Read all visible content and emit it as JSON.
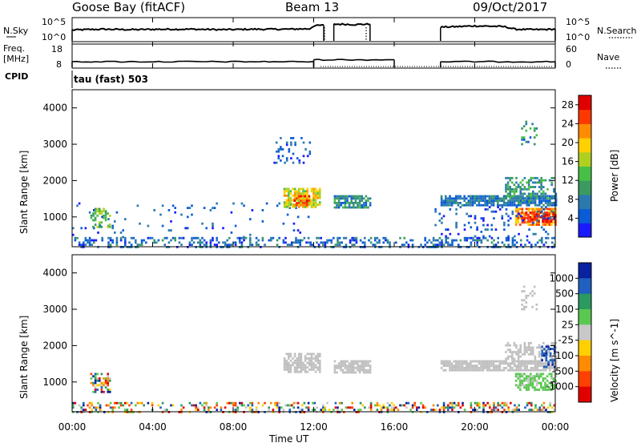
{
  "header": {
    "station": "Goose Bay (fitACF)",
    "beam": "Beam 13",
    "date": "09/Oct/2017"
  },
  "panels": {
    "nsky": {
      "left_label": "N.Sky",
      "right_label": "N.Search",
      "left_ticks": [
        "10^5",
        "10^0"
      ],
      "right_ticks": [
        "10^5",
        "10^0"
      ]
    },
    "freq": {
      "left_label_1": "Freq.",
      "left_label_2": "[MHz]",
      "right_label": "Nave",
      "left_ticks": [
        "18",
        "8"
      ],
      "right_ticks": [
        "60",
        "0"
      ]
    },
    "cpid": {
      "label": "CPID",
      "program": "tau (fast) 503"
    }
  },
  "chart_data": [
    {
      "type": "line",
      "name": "nsky-panel",
      "x_unit": "hours UT",
      "series": [
        {
          "name": "N.Sky",
          "segments": [
            {
              "x": [
                0.0,
                0.6,
                1.5,
                3.0,
                4.5,
                6.0,
                7.5,
                9.0,
                10.5,
                11.8,
                12.0,
                12.5
              ],
              "y": [
                2.4,
                2.5,
                2.6,
                2.5,
                2.6,
                2.6,
                2.5,
                2.6,
                2.6,
                2.7,
                3.4,
                3.6
              ]
            },
            {
              "x": [
                13.0,
                13.5,
                14.0,
                14.5,
                14.8
              ],
              "y": [
                3.8,
                3.8,
                3.7,
                3.8,
                3.8
              ]
            },
            {
              "x": [
                18.3,
                19.0,
                20.0,
                21.0,
                21.5,
                22.0,
                23.0,
                24.0
              ],
              "y": [
                3.1,
                3.2,
                3.4,
                3.3,
                3.2,
                2.6,
                2.5,
                2.6
              ]
            }
          ]
        }
      ],
      "ylim": [
        0,
        5
      ]
    },
    {
      "type": "line",
      "name": "freq-panel",
      "x_unit": "hours UT",
      "series": [
        {
          "name": "Freq.",
          "segments": [
            {
              "x": [
                0.0,
                12.0
              ],
              "y": [
                10.5,
                10.5
              ]
            },
            {
              "x": [
                12.0,
                16.0
              ],
              "y": [
                11.5,
                11.5
              ]
            },
            {
              "x": [
                18.3,
                24.0
              ],
              "y": [
                10.5,
                10.5
              ]
            }
          ]
        }
      ],
      "ylim": [
        8,
        18
      ]
    },
    {
      "type": "heatmap",
      "title": "",
      "xlabel": "Time UT",
      "ylabel": "Slant Range [km]",
      "x_ticks": [
        "00:00",
        "04:00",
        "08:00",
        "12:00",
        "16:00",
        "20:00",
        "00:00"
      ],
      "y_ticks": [
        1000,
        2000,
        3000,
        4000
      ],
      "xlim": [
        0,
        24
      ],
      "ylim": [
        180,
        4500
      ],
      "colorbar": {
        "label": "Power [dB]",
        "ticks": [
          4,
          8,
          12,
          16,
          20,
          24,
          28
        ],
        "range": [
          0,
          30
        ]
      },
      "regions": [
        {
          "x": [
            0.0,
            24.0
          ],
          "y": [
            200,
            450
          ],
          "value": 6,
          "density": 0.35
        },
        {
          "x": [
            0.0,
            12.0
          ],
          "y": [
            450,
            1400
          ],
          "value": 5,
          "density": 0.05
        },
        {
          "x": [
            0.9,
            1.9
          ],
          "y": [
            700,
            1250
          ],
          "value": 14,
          "density": 0.5
        },
        {
          "x": [
            10.5,
            12.3
          ],
          "y": [
            1250,
            1800
          ],
          "value": 18,
          "density": 0.75
        },
        {
          "x": [
            11.0,
            11.8
          ],
          "y": [
            1300,
            1600
          ],
          "value": 26,
          "density": 0.5
        },
        {
          "x": [
            10.0,
            11.8
          ],
          "y": [
            2500,
            3200
          ],
          "value": 5,
          "density": 0.2
        },
        {
          "x": [
            13.0,
            14.8
          ],
          "y": [
            1250,
            1600
          ],
          "value": 9,
          "density": 0.8
        },
        {
          "x": [
            18.3,
            24.0
          ],
          "y": [
            1350,
            1600
          ],
          "value": 7,
          "density": 0.85
        },
        {
          "x": [
            21.5,
            24.0
          ],
          "y": [
            1500,
            2100
          ],
          "value": 10,
          "density": 0.45
        },
        {
          "x": [
            22.0,
            24.0
          ],
          "y": [
            800,
            1250
          ],
          "value": 23,
          "density": 0.8
        },
        {
          "x": [
            22.3,
            24.0
          ],
          "y": [
            850,
            1150
          ],
          "value": 28,
          "density": 0.6
        },
        {
          "x": [
            22.3,
            23.1
          ],
          "y": [
            3000,
            3650
          ],
          "value": 9,
          "density": 0.25
        },
        {
          "x": [
            18.0,
            24.0
          ],
          "y": [
            450,
            1300
          ],
          "value": 5,
          "density": 0.12
        }
      ]
    },
    {
      "type": "heatmap",
      "title": "",
      "xlabel": "Time UT",
      "ylabel": "Slant Range [km]",
      "x_ticks": [
        "00:00",
        "04:00",
        "08:00",
        "12:00",
        "16:00",
        "20:00",
        "00:00"
      ],
      "y_ticks": [
        1000,
        2000,
        3000,
        4000
      ],
      "xlim": [
        0,
        24
      ],
      "ylim": [
        180,
        4500
      ],
      "colorbar": {
        "label": "Velocity [m s^-1]",
        "ticks": [
          "1000",
          "500",
          "100",
          "25",
          "-25",
          "-100",
          "-500",
          "-1000"
        ]
      },
      "regions": [
        {
          "x": [
            0.0,
            24.0
          ],
          "y": [
            200,
            450
          ],
          "class": "mixed",
          "density": 0.35
        },
        {
          "x": [
            0.9,
            1.9
          ],
          "y": [
            700,
            1250
          ],
          "class": "mixed",
          "density": 0.5
        },
        {
          "x": [
            10.5,
            12.3
          ],
          "y": [
            1250,
            1800
          ],
          "class": "ground",
          "density": 0.75
        },
        {
          "x": [
            13.0,
            14.8
          ],
          "y": [
            1250,
            1600
          ],
          "class": "ground",
          "density": 0.8
        },
        {
          "x": [
            18.3,
            24.0
          ],
          "y": [
            1350,
            1600
          ],
          "class": "ground",
          "density": 0.85
        },
        {
          "x": [
            21.5,
            24.0
          ],
          "y": [
            1500,
            2100
          ],
          "class": "ground",
          "density": 0.45
        },
        {
          "x": [
            22.0,
            24.0
          ],
          "y": [
            800,
            1250
          ],
          "class": "green",
          "density": 0.7
        },
        {
          "x": [
            22.3,
            23.1
          ],
          "y": [
            3000,
            3650
          ],
          "class": "ground",
          "density": 0.25
        },
        {
          "x": [
            23.3,
            24.0
          ],
          "y": [
            1400,
            2000
          ],
          "class": "blue",
          "density": 0.4
        }
      ]
    }
  ],
  "colors": {
    "power_scale": [
      "#1a1aff",
      "#0a5cd6",
      "#2a7ab0",
      "#3a9a60",
      "#48c048",
      "#b0d020",
      "#ffd000",
      "#ff8c00",
      "#ff3800",
      "#e00000"
    ],
    "velocity_scale": [
      "#0a22a0",
      "#2060c0",
      "#2a9a60",
      "#5ac850",
      "#c8c8c8",
      "#ffd000",
      "#ff8c00",
      "#ff4000",
      "#e00000"
    ],
    "ground_scatter": "#c0c0c0"
  }
}
